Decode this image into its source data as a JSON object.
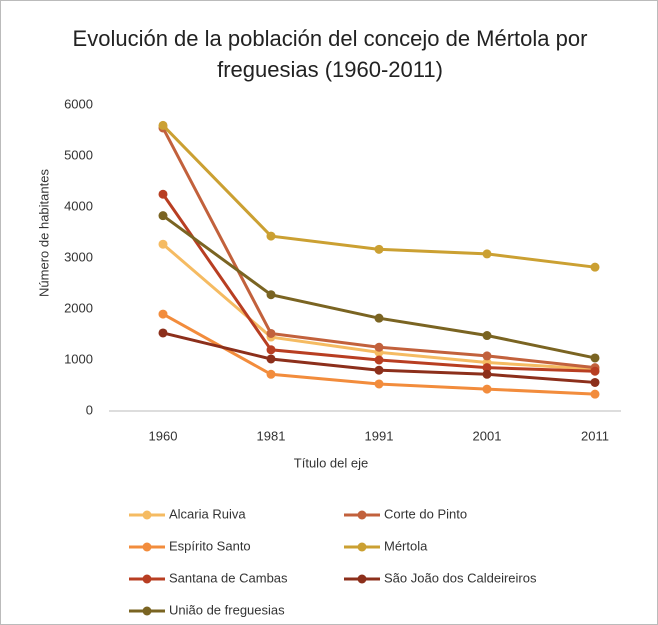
{
  "chart_data": {
    "type": "line",
    "title": "Evolución de la población del concejo de Mértola por freguesias (1960-2011)",
    "x_label": "Título del eje",
    "y_label": "Número de habitantes",
    "categories": [
      "1960",
      "1981",
      "1991",
      "2001",
      "2011"
    ],
    "ylim": [
      0,
      6000
    ],
    "yticks": [
      0,
      1000,
      2000,
      3000,
      4000,
      5000,
      6000
    ],
    "grid": false,
    "legend": "bottom",
    "series": [
      {
        "name": "Alcaria Ruiva",
        "color": "#f5bb62",
        "values": [
          3270,
          1450,
          1150,
          950,
          820
        ]
      },
      {
        "name": "Corte do Pinto",
        "color": "#c2613c",
        "values": [
          5550,
          1520,
          1250,
          1080,
          850
        ]
      },
      {
        "name": "Espírito Santo",
        "color": "#f28c3c",
        "values": [
          1900,
          720,
          530,
          430,
          330
        ]
      },
      {
        "name": "Mértola",
        "color": "#cba032",
        "values": [
          5600,
          3430,
          3170,
          3080,
          2820
        ]
      },
      {
        "name": "Santana de Cambas",
        "color": "#b83e22",
        "values": [
          4250,
          1200,
          1000,
          850,
          780
        ]
      },
      {
        "name": "São João dos Caldeireiros",
        "color": "#8c2f1b",
        "values": [
          1530,
          1020,
          800,
          720,
          560
        ]
      },
      {
        "name": "União de freguesias",
        "color": "#7a6422",
        "values": [
          3830,
          2280,
          1820,
          1480,
          1040
        ]
      }
    ]
  }
}
